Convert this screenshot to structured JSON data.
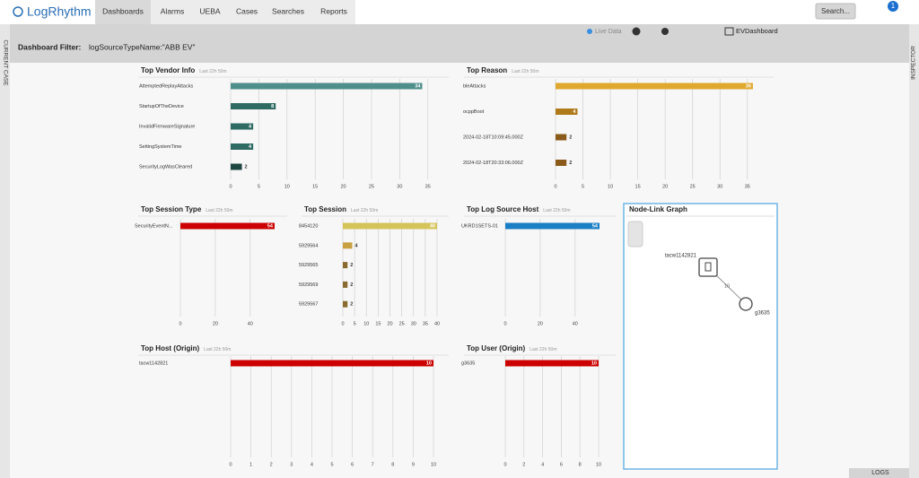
{
  "nav": {
    "logo": "LogRhythm",
    "tabs": [
      "Dashboards",
      "Alarms",
      "UEBA",
      "Cases",
      "Searches",
      "Reports"
    ],
    "search": "Search...",
    "badge": "1"
  },
  "sidebar": {
    "left": "CURRENT CASE",
    "right": "INSPECTOR"
  },
  "toolbar": {
    "filter_label": "Dashboard Filter:",
    "filter_value": "logSourceTypeName:\"ABB EV\"",
    "live": "Live Data",
    "dashboard": "EVDashboard"
  },
  "footer": {
    "logs": "LOGS"
  },
  "node_graph": {
    "title": "Node-Link Graph",
    "nodes": [
      "tacw1142821",
      "g3635"
    ],
    "edge_label": "10"
  },
  "chart_data": [
    {
      "type": "hbar",
      "title": "Top Vendor Info",
      "subtitle": "Last 22h 50m",
      "categories": [
        "AttemptedReplayAttacks",
        "StartupOfTheDevice",
        "InvalidFirmwareSignature",
        "SettingSystemTime",
        "SecurityLogWasCleared"
      ],
      "values": [
        34,
        8,
        4,
        4,
        2
      ],
      "colors": [
        "#4e8f8c",
        "#2e6b63",
        "#2e6b63",
        "#2e6b63",
        "#1d4740"
      ],
      "xlim": [
        0,
        36
      ],
      "xticks": [
        0,
        5,
        10,
        15,
        20,
        25,
        30,
        35
      ]
    },
    {
      "type": "hbar",
      "title": "Top Reason",
      "subtitle": "Last 22h 50m",
      "categories": [
        "bleAttacks",
        "ocppBoot",
        "2024-02-18T10:09:45.000Z",
        "2024-02-18T20:33:06.000Z"
      ],
      "values": [
        36,
        4,
        2,
        2
      ],
      "colors": [
        "#e0a82e",
        "#b07a1a",
        "#8a5a1a",
        "#8a5a1a"
      ],
      "xlim": [
        0,
        37
      ],
      "xticks": [
        0,
        5,
        10,
        15,
        20,
        25,
        30,
        35
      ]
    },
    {
      "type": "hbar",
      "title": "Top Session Type",
      "subtitle": "Last 22h 50m",
      "categories": [
        "SecurityEventN..."
      ],
      "values": [
        54
      ],
      "colors": [
        "#cc0000"
      ],
      "xlim": [
        0,
        54
      ],
      "xticks": [
        0,
        20,
        40
      ]
    },
    {
      "type": "hbar",
      "title": "Top Session",
      "subtitle": "Last 22h 50m",
      "categories": [
        "8454120",
        "5929564",
        "5929565",
        "5929569",
        "5929567"
      ],
      "values": [
        40,
        4,
        2,
        2,
        2
      ],
      "colors": [
        "#d4c45a",
        "#c8a040",
        "#8a6a30",
        "#8a6a30",
        "#8a6a30"
      ],
      "xlim": [
        0,
        40
      ],
      "xticks": [
        0,
        5,
        10,
        15,
        20,
        25,
        30,
        35,
        40
      ]
    },
    {
      "type": "hbar",
      "title": "Top Log Source Host",
      "subtitle": "Last 22h 50m",
      "categories": [
        "UKRD1SETS-01"
      ],
      "values": [
        54
      ],
      "colors": [
        "#1a7fc4"
      ],
      "xlim": [
        0,
        54
      ],
      "xticks": [
        0,
        20,
        40
      ]
    },
    {
      "type": "hbar",
      "title": "Top Host (Origin)",
      "subtitle": "Last 22h 50m",
      "categories": [
        "tacw1142821"
      ],
      "values": [
        10
      ],
      "colors": [
        "#cc0000"
      ],
      "xlim": [
        0,
        10
      ],
      "xticks": [
        0,
        1,
        2,
        3,
        4,
        5,
        6,
        7,
        8,
        9,
        10
      ]
    },
    {
      "type": "hbar",
      "title": "Top User (Origin)",
      "subtitle": "Last 22h 50m",
      "categories": [
        "g3635"
      ],
      "values": [
        10
      ],
      "colors": [
        "#cc0000"
      ],
      "xlim": [
        0,
        10
      ],
      "xticks": [
        0,
        2,
        4,
        6,
        8,
        10
      ]
    }
  ]
}
